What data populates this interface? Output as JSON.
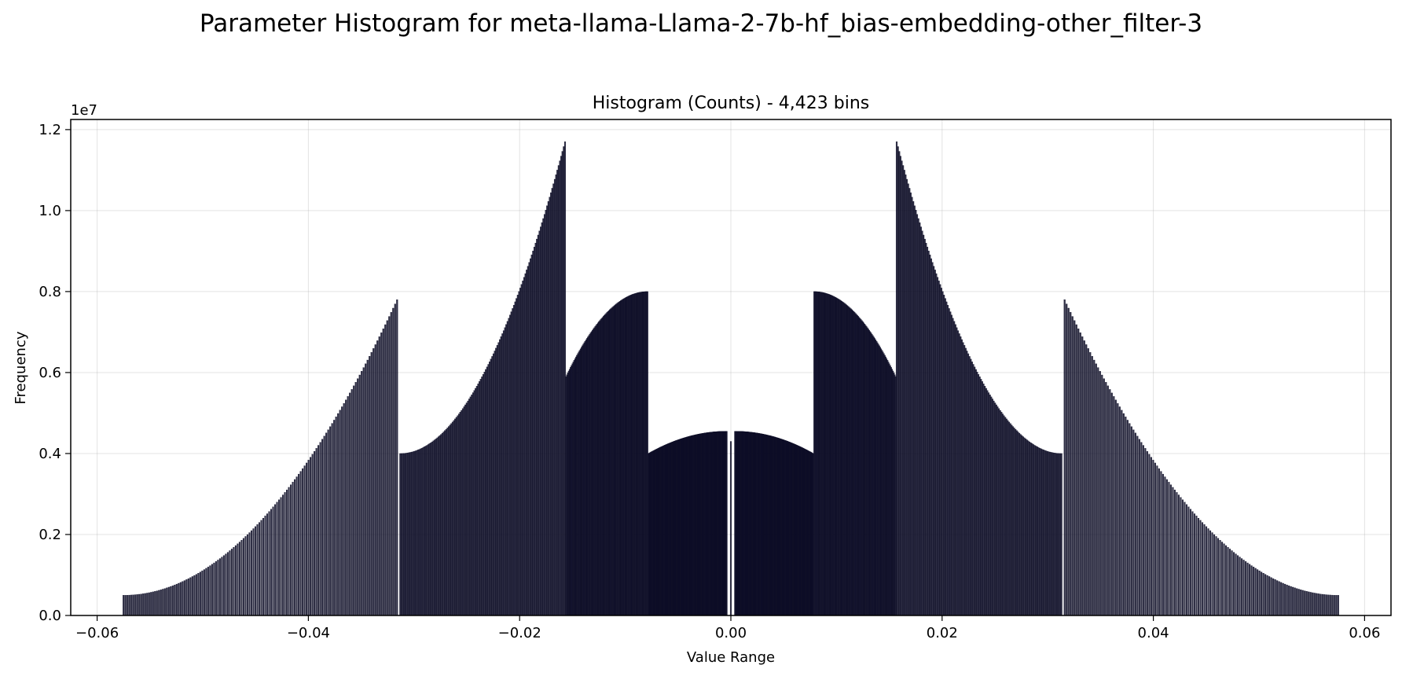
{
  "figure": {
    "suptitle": "Parameter Histogram for meta-llama-Llama-2-7b-hf_bias-embedding-other_filter-3"
  },
  "chart_data": {
    "type": "bar",
    "title": "Histogram (Counts) - 4,423 bins",
    "xlabel": "Value Range",
    "ylabel": "Frequency",
    "y_offset_label": "1e7",
    "xlim": [
      -0.0625,
      0.0625
    ],
    "ylim": [
      0,
      12250000
    ],
    "x_ticks": [
      -0.06,
      -0.04,
      -0.02,
      0.0,
      0.02,
      0.04,
      0.06
    ],
    "x_tick_labels": [
      "−0.06",
      "−0.04",
      "−0.02",
      "0.00",
      "0.02",
      "0.04",
      "0.06"
    ],
    "y_ticks": [
      0,
      2000000,
      4000000,
      6000000,
      8000000,
      10000000,
      12000000
    ],
    "y_tick_labels": [
      "0.0",
      "0.2",
      "0.4",
      "0.6",
      "0.8",
      "1.0",
      "1.2"
    ],
    "grid": true,
    "bar_color": "#0b0b24",
    "bar_edge_color": "#0b0b24",
    "bins": 4423,
    "segments": [
      {
        "x_start": -0.0575,
        "x_end": -0.0316,
        "y_start": 500000,
        "y_end": 7800000,
        "shape": "convex",
        "bar_count": 140
      },
      {
        "x_start": -0.0313,
        "x_end": -0.0157,
        "y_start": 4000000,
        "y_end": 11700000,
        "shape": "convex",
        "bar_count": 130
      },
      {
        "x_start": -0.0156,
        "x_end": -0.0079,
        "y_start": 5900000,
        "y_end": 8000000,
        "shape": "concave",
        "bar_count": 90
      },
      {
        "x_start": -0.0078,
        "x_end": -0.0004,
        "y_start": 4000000,
        "y_end": 4550000,
        "shape": "concave",
        "bar_count": 110
      },
      {
        "x_start": 0.0,
        "x_end": 0.0,
        "y_start": 4300000,
        "y_end": 4300000,
        "shape": "point",
        "bar_count": 1
      },
      {
        "x_start": 0.0004,
        "x_end": 0.0078,
        "y_start": 4550000,
        "y_end": 4000000,
        "shape": "concave",
        "bar_count": 110
      },
      {
        "x_start": 0.0079,
        "x_end": 0.0156,
        "y_start": 8000000,
        "y_end": 5900000,
        "shape": "concave",
        "bar_count": 90
      },
      {
        "x_start": 0.0157,
        "x_end": 0.0313,
        "y_start": 11700000,
        "y_end": 4000000,
        "shape": "convex",
        "bar_count": 130
      },
      {
        "x_start": 0.0316,
        "x_end": 0.0575,
        "y_start": 7800000,
        "y_end": 500000,
        "shape": "convex",
        "bar_count": 140
      }
    ]
  }
}
